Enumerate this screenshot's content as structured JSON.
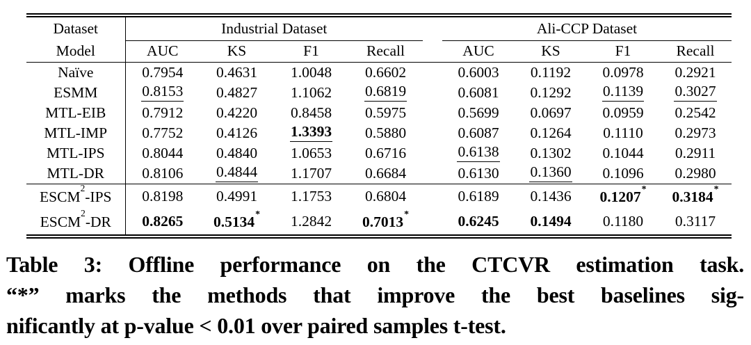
{
  "table": {
    "corner": {
      "top": "Dataset",
      "bottom": "Model"
    },
    "groups": [
      {
        "label": "Industrial Dataset"
      },
      {
        "label": "Ali-CCP Dataset"
      }
    ],
    "metrics": [
      "AUC",
      "KS",
      "F1",
      "Recall"
    ],
    "rows": [
      {
        "model": {
          "base": "Naïve",
          "sup": "",
          "post": ""
        },
        "cells": [
          {
            "v": "0.7954"
          },
          {
            "v": "0.4631"
          },
          {
            "v": "1.0048"
          },
          {
            "v": "0.6602"
          },
          {
            "v": "0.6003"
          },
          {
            "v": "0.1192"
          },
          {
            "v": "0.0978"
          },
          {
            "v": "0.2921"
          }
        ]
      },
      {
        "model": {
          "base": "ESMM",
          "sup": "",
          "post": ""
        },
        "cells": [
          {
            "v": "0.8153",
            "u": true
          },
          {
            "v": "0.4827"
          },
          {
            "v": "1.1062"
          },
          {
            "v": "0.6819",
            "u": true
          },
          {
            "v": "0.6081"
          },
          {
            "v": "0.1292"
          },
          {
            "v": "0.1139",
            "u": true
          },
          {
            "v": "0.3027",
            "u": true
          }
        ]
      },
      {
        "model": {
          "base": "MTL-EIB",
          "sup": "",
          "post": ""
        },
        "cells": [
          {
            "v": "0.7912"
          },
          {
            "v": "0.4220"
          },
          {
            "v": "0.8458"
          },
          {
            "v": "0.5975"
          },
          {
            "v": "0.5699"
          },
          {
            "v": "0.0697"
          },
          {
            "v": "0.0959"
          },
          {
            "v": "0.2542"
          }
        ]
      },
      {
        "model": {
          "base": "MTL-IMP",
          "sup": "",
          "post": ""
        },
        "cells": [
          {
            "v": "0.7752"
          },
          {
            "v": "0.4126"
          },
          {
            "v": "1.3393",
            "b": true,
            "u": true
          },
          {
            "v": "0.5880"
          },
          {
            "v": "0.6087"
          },
          {
            "v": "0.1264"
          },
          {
            "v": "0.1110"
          },
          {
            "v": "0.2973"
          }
        ]
      },
      {
        "model": {
          "base": "MTL-IPS",
          "sup": "",
          "post": ""
        },
        "cells": [
          {
            "v": "0.8044"
          },
          {
            "v": "0.4840"
          },
          {
            "v": "1.0653"
          },
          {
            "v": "0.6716"
          },
          {
            "v": "0.6138",
            "u": true
          },
          {
            "v": "0.1302"
          },
          {
            "v": "0.1044"
          },
          {
            "v": "0.2911"
          }
        ]
      },
      {
        "model": {
          "base": "MTL-DR",
          "sup": "",
          "post": ""
        },
        "rule_below": true,
        "cells": [
          {
            "v": "0.8106"
          },
          {
            "v": "0.4844",
            "u": true
          },
          {
            "v": "1.1707"
          },
          {
            "v": "0.6684"
          },
          {
            "v": "0.6130"
          },
          {
            "v": "0.1360",
            "u": true
          },
          {
            "v": "0.1096"
          },
          {
            "v": "0.2980"
          }
        ]
      },
      {
        "model": {
          "base": "ESCM",
          "sup": "2",
          "post": "-IPS"
        },
        "cells": [
          {
            "v": "0.8198"
          },
          {
            "v": "0.4991"
          },
          {
            "v": "1.1753"
          },
          {
            "v": "0.6804"
          },
          {
            "v": "0.6189"
          },
          {
            "v": "0.1436"
          },
          {
            "v": "0.1207",
            "b": true,
            "star": true
          },
          {
            "v": "0.3184",
            "b": true,
            "star": true
          }
        ]
      },
      {
        "model": {
          "base": "ESCM",
          "sup": "2",
          "post": "-DR"
        },
        "cells": [
          {
            "v": "0.8265",
            "b": true
          },
          {
            "v": "0.5134",
            "b": true,
            "star": true
          },
          {
            "v": "1.2842"
          },
          {
            "v": "0.7013",
            "b": true,
            "star": true
          },
          {
            "v": "0.6245",
            "b": true
          },
          {
            "v": "0.1494",
            "b": true
          },
          {
            "v": "0.1180"
          },
          {
            "v": "0.3117"
          }
        ]
      }
    ]
  },
  "caption": {
    "lines": [
      "Table 3: Offline performance on the CTCVR estimation task.",
      "“*” marks the methods that improve the best baselines sig-",
      "nificantly at p-value < 0.01 over paired samples t-test."
    ]
  }
}
